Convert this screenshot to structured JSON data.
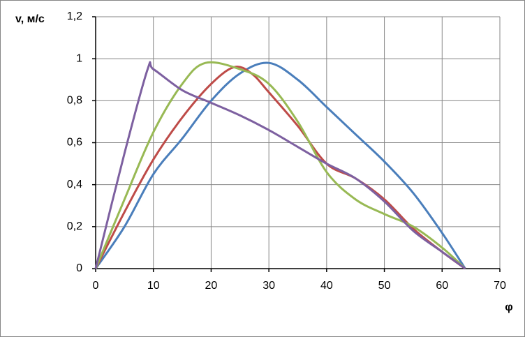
{
  "chart_data": {
    "type": "line",
    "y_label": "v, м/с",
    "x_label": "φ",
    "xlim": [
      0,
      70
    ],
    "xticks": [
      0,
      10,
      20,
      30,
      40,
      50,
      60,
      70
    ],
    "ylim": [
      0,
      1.2
    ],
    "yticks": [
      0,
      {
        "value": 0.2,
        "label": "0,2"
      },
      {
        "value": 0.4,
        "label": "0,4"
      },
      {
        "value": 0.6,
        "label": "0,6"
      },
      {
        "value": 0.8,
        "label": "0,8"
      },
      1,
      {
        "value": 1.2,
        "label": "1,2"
      }
    ],
    "grid": true,
    "smooth": true,
    "series": [
      {
        "color": "#4a7ebb",
        "x": [
          0,
          5,
          10,
          15,
          20,
          25,
          30,
          35,
          40,
          45,
          50,
          55,
          60,
          64
        ],
        "values": [
          0,
          0.2,
          0.45,
          0.62,
          0.8,
          0.93,
          0.98,
          0.9,
          0.77,
          0.64,
          0.51,
          0.36,
          0.17,
          0
        ]
      },
      {
        "color": "#be4b48",
        "x": [
          0,
          5,
          10,
          15,
          20,
          24,
          27,
          30,
          35,
          40,
          45,
          50,
          55,
          60,
          64
        ],
        "values": [
          0,
          0.27,
          0.52,
          0.72,
          0.88,
          0.96,
          0.93,
          0.84,
          0.68,
          0.5,
          0.43,
          0.33,
          0.19,
          0.08,
          0
        ]
      },
      {
        "color": "#98b954",
        "x": [
          0,
          5,
          10,
          15,
          19,
          25,
          30,
          35,
          40,
          45,
          50,
          55,
          60,
          64
        ],
        "values": [
          0,
          0.33,
          0.65,
          0.88,
          0.98,
          0.95,
          0.88,
          0.7,
          0.46,
          0.33,
          0.26,
          0.2,
          0.1,
          0
        ]
      },
      {
        "color": "#7d60a0",
        "x": [
          0,
          5,
          9,
          10,
          15,
          20,
          25,
          30,
          35,
          40,
          45,
          50,
          55,
          60,
          64
        ],
        "values": [
          0,
          0.55,
          0.95,
          0.95,
          0.85,
          0.79,
          0.73,
          0.66,
          0.58,
          0.5,
          0.43,
          0.32,
          0.18,
          0.08,
          0
        ]
      }
    ]
  }
}
